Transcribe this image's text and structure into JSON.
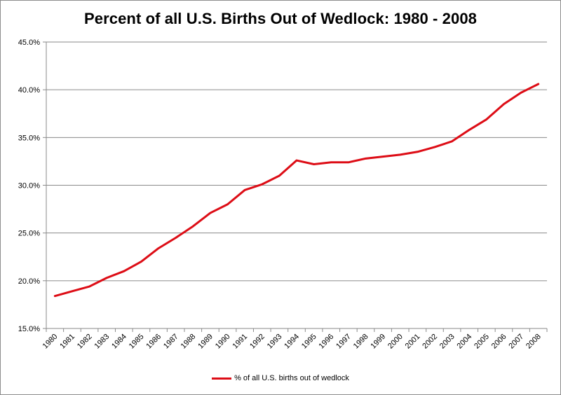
{
  "chart_data": {
    "type": "line",
    "title": "Percent of all U.S. Births Out of Wedlock: 1980 - 2008",
    "xlabel": "",
    "ylabel": "",
    "x": [
      "1980",
      "1981",
      "1982",
      "1983",
      "1984",
      "1985",
      "1986",
      "1987",
      "1988",
      "1989",
      "1990",
      "1991",
      "1992",
      "1993",
      "1994",
      "1995",
      "1996",
      "1997",
      "1998",
      "1999",
      "2000",
      "2001",
      "2002",
      "2003",
      "2004",
      "2005",
      "2006",
      "2007",
      "2008"
    ],
    "y_ticks": [
      "15.0%",
      "20.0%",
      "25.0%",
      "30.0%",
      "35.0%",
      "40.0%",
      "45.0%"
    ],
    "ylim": [
      15,
      45
    ],
    "grid": true,
    "legend_position": "bottom",
    "series": [
      {
        "name": "% of all U.S. births out of wedlock",
        "color": "#dd0d16",
        "values": [
          18.4,
          18.9,
          19.4,
          20.3,
          21.0,
          22.0,
          23.4,
          24.5,
          25.7,
          27.1,
          28.0,
          29.5,
          30.1,
          31.0,
          32.6,
          32.2,
          32.4,
          32.4,
          32.8,
          33.0,
          33.2,
          33.5,
          34.0,
          34.6,
          35.8,
          36.9,
          38.5,
          39.7,
          40.6
        ]
      }
    ]
  }
}
